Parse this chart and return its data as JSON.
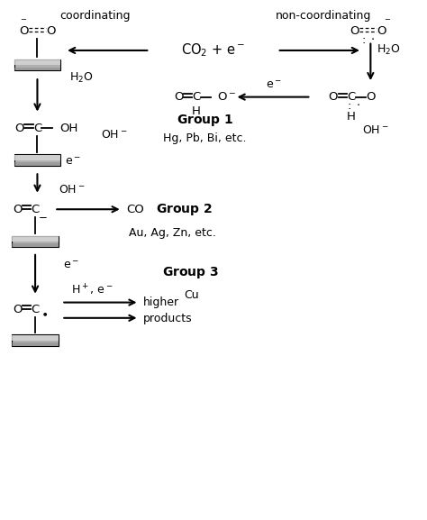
{
  "figsize": [
    4.74,
    5.77
  ],
  "dpi": 100,
  "bg_color": "#ffffff",
  "text_color": "#000000",
  "xlim": [
    0,
    10
  ],
  "ylim": [
    0,
    10
  ],
  "coordinating_label": "coordinating",
  "non_coordinating_label": "non-coordinating",
  "group1_label": "Group 1",
  "group1_metals": "Hg, Pb, Bi, etc.",
  "group2_label": "Group 2",
  "group2_metals": "Au, Ag, Zn, etc.",
  "group3_label": "Group 3",
  "group3_metal": "Cu",
  "co_label": "CO",
  "fs_small": 8.5,
  "fs_mol": 9.5,
  "fs_label": 9,
  "fs_group": 10
}
